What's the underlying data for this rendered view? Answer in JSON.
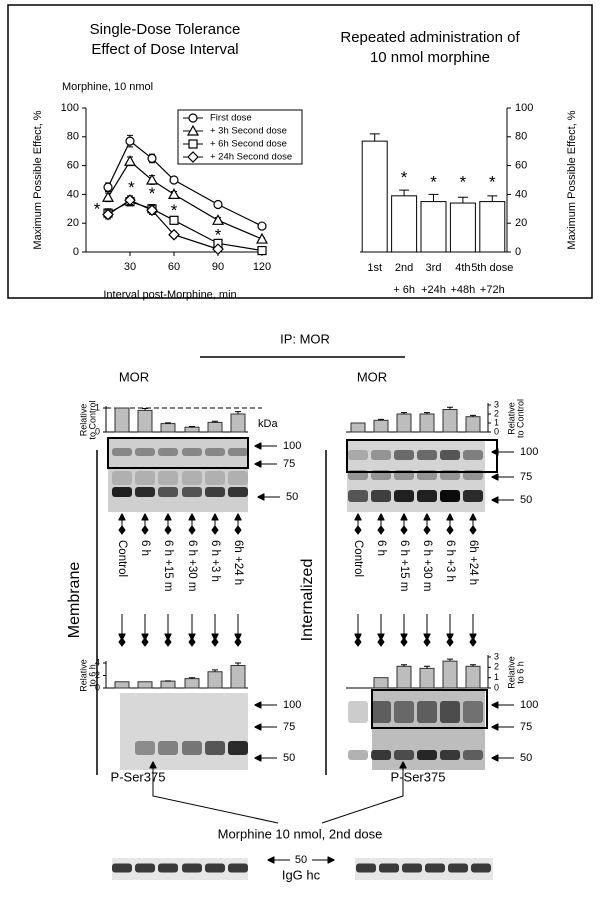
{
  "chart_data": [
    {
      "type": "line",
      "title": [
        "Single-Dose Tolerance",
        "Effect of Dose Interval"
      ],
      "subtitle": "Morphine, 10 nmol",
      "xlabel": "Interval post-Morphine, min",
      "ylabel": "Maximum Possible Effect, %",
      "x": [
        15,
        30,
        45,
        60,
        90,
        120
      ],
      "xlim": [
        0,
        120
      ],
      "xticks": [
        30,
        60,
        90,
        120
      ],
      "ylim": [
        0,
        100
      ],
      "yticks": [
        0,
        20,
        40,
        60,
        80,
        100
      ],
      "legend": "upper right",
      "series": [
        {
          "name": "First dose",
          "marker": "circle",
          "color": "#000000",
          "values": [
            45,
            77,
            65,
            50,
            33,
            18
          ],
          "errors": [
            3,
            4,
            3,
            2,
            2,
            1
          ]
        },
        {
          "name": "+  3h Second dose",
          "marker": "triangle",
          "color": "#000000",
          "values": [
            38,
            63,
            50,
            40,
            22,
            9
          ],
          "errors": [
            3,
            3,
            3,
            2,
            2,
            1
          ]
        },
        {
          "name": "+  6h Second dose",
          "marker": "square",
          "color": "#000000",
          "values": [
            27,
            35,
            30,
            22,
            6,
            1
          ],
          "errors": [
            3,
            3,
            3,
            2,
            2,
            1
          ]
        },
        {
          "name": "+ 24h Second dose",
          "marker": "diamond",
          "color": "#000000",
          "values": [
            26,
            36,
            29,
            12,
            2,
            null
          ],
          "errors": [
            3,
            3,
            3,
            2,
            1,
            null
          ]
        }
      ],
      "annotations": [
        {
          "text": "*",
          "x": 7.5,
          "y": 29
        },
        {
          "text": "*",
          "x": 31,
          "y": 44
        },
        {
          "text": "*",
          "x": 45,
          "y": 40
        },
        {
          "text": "*",
          "x": 60,
          "y": 28
        },
        {
          "text": "*",
          "x": 90,
          "y": 11
        }
      ]
    },
    {
      "type": "bar",
      "title": [
        "Repeated administration of",
        "10 nmol morphine"
      ],
      "ylabel": "Maximum Possible Effect, %",
      "y_axis": "right",
      "categories": [
        "1st",
        "2nd",
        "3rd",
        "4th",
        "5th dose"
      ],
      "sublabels": [
        null,
        "+ 6h",
        "+24h",
        "+48h",
        "+72h"
      ],
      "values": [
        77,
        39,
        35,
        34,
        35
      ],
      "errors": [
        5,
        4,
        5,
        4,
        4
      ],
      "color": "#ffffff",
      "ylim": [
        0,
        100
      ],
      "yticks": [
        0,
        20,
        40,
        60,
        80,
        100
      ],
      "annotations": [
        {
          "text": "*",
          "x": "2nd",
          "y": 51
        },
        {
          "text": "*",
          "x": "3rd",
          "y": 48
        },
        {
          "text": "*",
          "x": "4th",
          "y": 48
        },
        {
          "text": "*",
          "x": "5th dose",
          "y": 48
        }
      ]
    },
    {
      "type": "bar",
      "ylabel": [
        "Relative",
        "to Control"
      ],
      "y_axis": "left",
      "color": "#bdbdbd",
      "ylim": [
        0,
        1
      ],
      "yticks": [
        0,
        1
      ],
      "reference_line": 1,
      "values": [
        1.0,
        0.9,
        0.35,
        0.2,
        0.4,
        0.75
      ],
      "errors": [
        null,
        0.08,
        0.03,
        0.03,
        0.05,
        0.1
      ]
    },
    {
      "type": "bar",
      "ylabel": [
        "Relative",
        "to 6 h"
      ],
      "y_axis": "left",
      "color": "#bdbdbd",
      "ylim": [
        0,
        4
      ],
      "yticks": [
        0,
        2,
        4
      ],
      "values": [
        1,
        1,
        1.1,
        1.5,
        2.6,
        3.6
      ],
      "errors": [
        null,
        null,
        0.05,
        0.15,
        0.3,
        0.4
      ]
    },
    {
      "type": "bar",
      "ylabel": [
        "Relative",
        "to Control"
      ],
      "y_axis": "right",
      "color": "#bdbdbd",
      "ylim": [
        0,
        3
      ],
      "yticks": [
        0,
        1,
        2,
        3
      ],
      "values": [
        1,
        1.3,
        2,
        2,
        2.5,
        1.7
      ],
      "errors": [
        null,
        0.1,
        0.15,
        0.15,
        0.25,
        0.15
      ]
    },
    {
      "type": "bar",
      "ylabel": [
        "Relative",
        "to 6 h"
      ],
      "y_axis": "right",
      "color": "#bdbdbd",
      "ylim": [
        0,
        3
      ],
      "yticks": [
        0,
        1,
        2,
        3
      ],
      "values": [
        null,
        1,
        2.1,
        1.9,
        2.6,
        2.1
      ],
      "errors": [
        null,
        null,
        0.15,
        0.2,
        0.2,
        0.15
      ]
    }
  ],
  "blots": {
    "header": "IP: MOR",
    "lanes": [
      "Control",
      "6 h",
      "6 h +15 m",
      "6 h +30 m",
      "6 h +3 h",
      "6h +24 h"
    ],
    "kda": "kDa",
    "panels": [
      {
        "title": "MOR",
        "group": "Membrane",
        "markers_top": [
          "100",
          "75",
          "50"
        ],
        "markers_bottom": [
          "100",
          "75",
          "50"
        ],
        "phospho": "P-Ser375"
      },
      {
        "title": "MOR",
        "group": "Internalized",
        "markers_top": [
          "100",
          "75",
          "50"
        ],
        "markers_bottom": [
          "100",
          "75",
          "50"
        ],
        "phospho": "P-Ser375"
      }
    ],
    "treatment": "Morphine 10 nmol, 2nd dose",
    "igg": {
      "marker": "50",
      "label": "IgG hc"
    }
  }
}
